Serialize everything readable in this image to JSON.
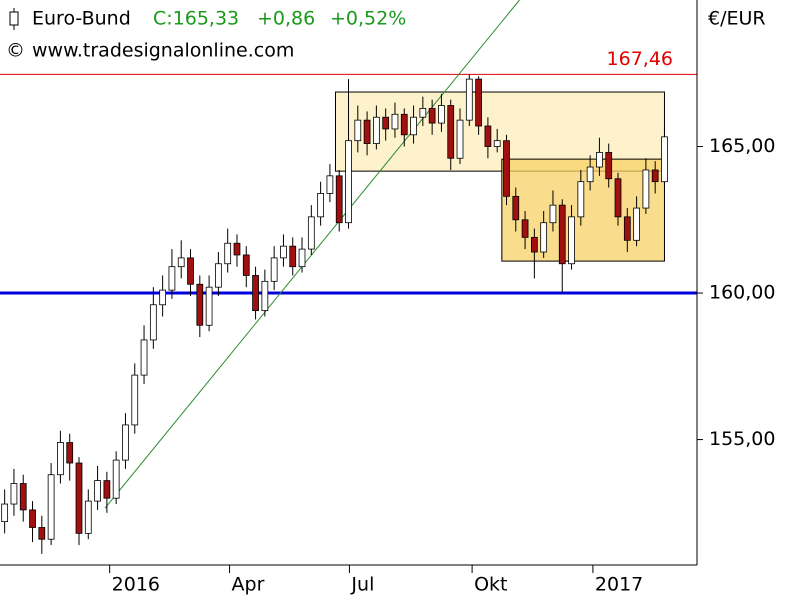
{
  "chart_data": {
    "type": "candlestick",
    "title": "Euro-Bund",
    "quote": "C:165,33",
    "change": "+0,86",
    "change_pct": "+0,52%",
    "source": "www.tradesignalonline.com",
    "unit": "€/EUR",
    "x": [
      0,
      1,
      2,
      3,
      4,
      5,
      6,
      7,
      8,
      9,
      10,
      11,
      12,
      13,
      14,
      15,
      16,
      17,
      18,
      19,
      20,
      21,
      22,
      23,
      24,
      25,
      26,
      27,
      28,
      29,
      30,
      31,
      32,
      33,
      34,
      35,
      36,
      37,
      38,
      39,
      40,
      41,
      42,
      43,
      44,
      45,
      46,
      47,
      48,
      49,
      50,
      51,
      52,
      53,
      54,
      55,
      56,
      57,
      58,
      59,
      60,
      61,
      62,
      63,
      64,
      65,
      66,
      67,
      68,
      69,
      70,
      71
    ],
    "open": [
      152.2,
      152.8,
      153.5,
      152.6,
      152.0,
      151.6,
      153.8,
      154.9,
      154.2,
      151.8,
      152.9,
      153.6,
      153.0,
      154.3,
      155.5,
      157.2,
      158.4,
      159.6,
      160.1,
      160.9,
      161.2,
      160.3,
      158.9,
      160.2,
      161.0,
      161.7,
      161.3,
      160.6,
      159.4,
      160.4,
      161.2,
      161.6,
      160.9,
      161.5,
      162.6,
      163.4,
      164.0,
      162.4,
      165.2,
      165.9,
      165.1,
      166.0,
      165.6,
      166.1,
      165.4,
      166.0,
      166.3,
      165.8,
      166.4,
      164.6,
      165.9,
      167.3,
      165.7,
      165.0,
      165.2,
      163.3,
      162.5,
      161.9,
      161.4,
      162.4,
      163.0,
      161.0,
      162.6,
      163.8,
      164.3,
      164.8,
      163.9,
      162.6,
      161.8,
      162.9,
      164.2,
      163.8
    ],
    "high": [
      153.3,
      154.0,
      153.8,
      152.9,
      152.4,
      154.2,
      155.3,
      155.2,
      154.4,
      153.3,
      154.1,
      153.9,
      154.6,
      155.9,
      157.6,
      158.9,
      160.2,
      160.6,
      161.5,
      161.8,
      161.5,
      160.6,
      160.6,
      161.4,
      162.2,
      162.0,
      161.6,
      160.9,
      160.8,
      161.6,
      162.0,
      161.9,
      161.9,
      163.0,
      163.8,
      164.4,
      164.2,
      167.3,
      166.4,
      166.2,
      166.4,
      166.3,
      166.5,
      166.3,
      166.4,
      166.7,
      166.6,
      166.8,
      166.6,
      166.3,
      167.46,
      167.4,
      166.0,
      165.6,
      165.4,
      163.6,
      162.8,
      162.2,
      162.8,
      163.5,
      163.2,
      163.0,
      164.2,
      164.7,
      165.3,
      165.1,
      164.1,
      162.9,
      163.3,
      164.6,
      164.5,
      165.6
    ],
    "low": [
      151.8,
      152.4,
      152.2,
      151.5,
      151.1,
      151.4,
      153.5,
      153.6,
      151.4,
      151.6,
      152.6,
      152.5,
      152.8,
      154.0,
      155.2,
      156.9,
      158.1,
      159.2,
      159.8,
      160.5,
      159.9,
      158.5,
      158.7,
      159.9,
      160.7,
      160.9,
      160.2,
      159.1,
      159.2,
      160.1,
      160.9,
      160.6,
      160.7,
      161.3,
      162.3,
      163.1,
      162.1,
      162.2,
      164.8,
      164.7,
      164.9,
      165.2,
      165.3,
      165.0,
      165.1,
      165.7,
      165.4,
      165.5,
      164.2,
      164.4,
      165.7,
      165.4,
      164.6,
      164.8,
      163.0,
      162.1,
      161.5,
      160.5,
      161.2,
      162.1,
      160.0,
      160.8,
      162.3,
      163.5,
      164.0,
      163.6,
      162.3,
      161.4,
      161.6,
      162.7,
      163.4,
      163.6
    ],
    "close": [
      152.8,
      153.5,
      152.6,
      152.0,
      151.6,
      153.8,
      154.9,
      154.2,
      151.8,
      152.9,
      153.6,
      153.0,
      154.3,
      155.5,
      157.2,
      158.4,
      159.6,
      160.1,
      160.9,
      161.2,
      160.3,
      158.9,
      160.2,
      161.0,
      161.7,
      161.3,
      160.6,
      159.4,
      160.4,
      161.2,
      161.6,
      160.9,
      161.5,
      162.6,
      163.4,
      164.0,
      162.4,
      165.2,
      165.9,
      165.1,
      166.0,
      165.6,
      166.1,
      165.4,
      166.0,
      166.3,
      165.8,
      166.4,
      164.6,
      165.9,
      167.3,
      165.7,
      165.0,
      165.2,
      163.3,
      162.5,
      161.9,
      161.4,
      162.4,
      163.0,
      161.0,
      162.6,
      163.8,
      164.3,
      164.8,
      163.9,
      162.6,
      161.8,
      162.9,
      164.2,
      163.8,
      165.33
    ],
    "up_color": "#ffffff",
    "down_color": "#a01010",
    "xlim": [
      0,
      75
    ],
    "xticks": [
      {
        "value": 11.8,
        "label": "2016"
      },
      {
        "value": 24.7,
        "label": "Apr"
      },
      {
        "value": 37.6,
        "label": "Jul"
      },
      {
        "value": 50.8,
        "label": "Okt"
      },
      {
        "value": 63.8,
        "label": "2017"
      }
    ],
    "ylim": [
      150.72,
      170.0
    ],
    "yticks": [
      {
        "value": 155,
        "label": "155,00"
      },
      {
        "value": 160,
        "label": "160,00"
      },
      {
        "value": 165,
        "label": "165,00"
      }
    ],
    "hlines": [
      {
        "value": 167.46,
        "label": "167,46",
        "color": "#e00000"
      },
      {
        "value": 160,
        "color": "#0000dd"
      }
    ],
    "boxes": [
      {
        "x": [
          36.1,
          71.5
        ],
        "y": [
          164.16,
          166.86
        ]
      },
      {
        "x": [
          54.0,
          71.5
        ],
        "y": [
          161.09,
          164.57
        ]
      }
    ],
    "trendline": {
      "x": [
        11.3,
        55.9
      ],
      "y": [
        152.66,
        170.0
      ],
      "color": "#2e8b2e"
    }
  }
}
